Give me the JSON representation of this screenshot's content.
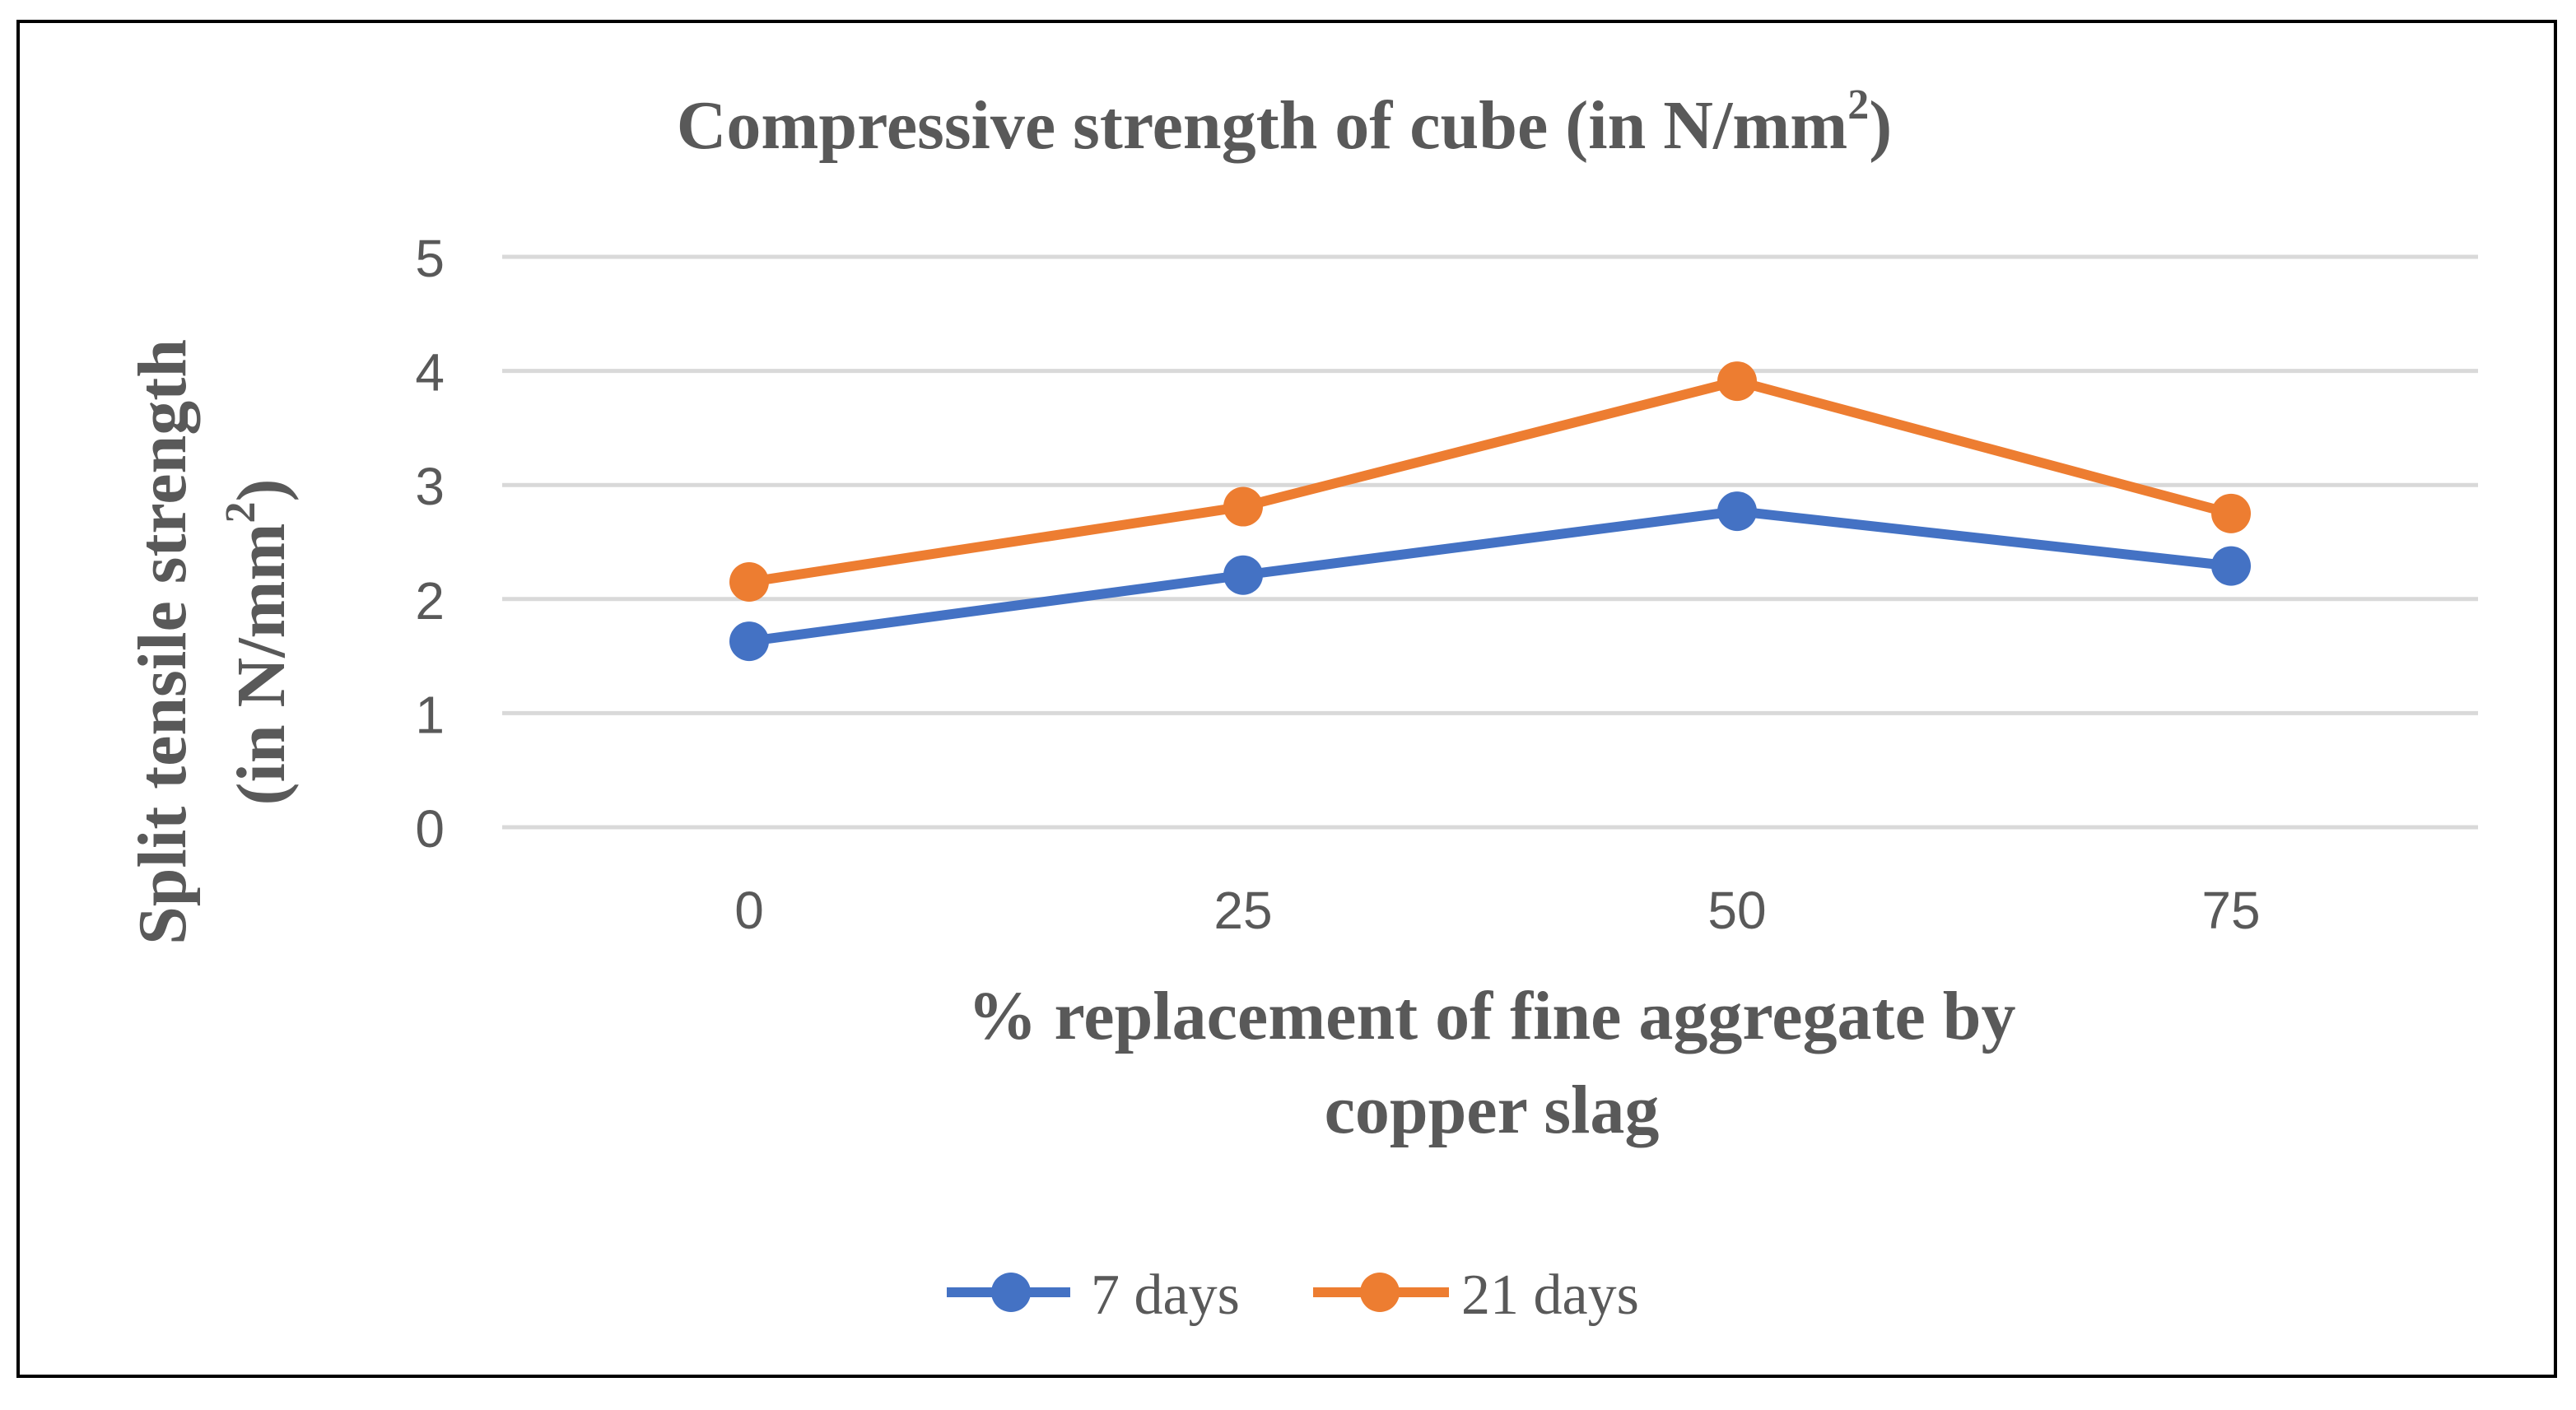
{
  "chart_data": {
    "type": "line",
    "title": "Compressive strength of cube (in N/mm",
    "title_superscript": "2",
    "title_suffix": ")",
    "ylabel_line1": "Split tensile strength",
    "ylabel_line2": "(in N/mm",
    "ylabel_superscript": "2",
    "ylabel_suffix": ")",
    "xlabel_line1": "% replacement of fine aggregate by",
    "xlabel_line2": "copper slag",
    "categories": [
      "0",
      "25",
      "50",
      "75"
    ],
    "ylim": [
      0,
      5
    ],
    "yticks": [
      "0",
      "1",
      "2",
      "3",
      "4",
      "5"
    ],
    "grid": true,
    "legend_position": "bottom",
    "series": [
      {
        "name": "7 days",
        "color": "#4472c4",
        "values": [
          1.63,
          2.21,
          2.77,
          2.29
        ]
      },
      {
        "name": "21 days",
        "color": "#ed7d31",
        "values": [
          2.15,
          2.81,
          3.91,
          2.75
        ]
      }
    ]
  }
}
